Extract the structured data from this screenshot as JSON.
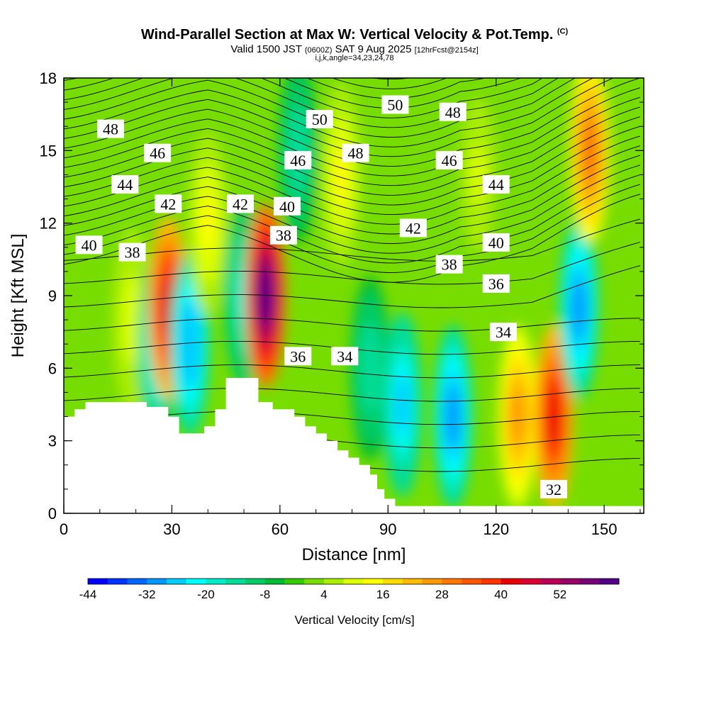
{
  "title": {
    "main": "Wind-Parallel Section at Max W: Vertical Velocity & Pot.Temp.",
    "copyright": "(C)",
    "valid_prefix": "Valid 1500 JST",
    "valid_utc": "(0600Z)",
    "valid_date": "SAT 9 Aug 2025",
    "forecast": "[12hrFcst@2154z]",
    "indices": "i,j,k,angle=34,23,24,78"
  },
  "chart_data": {
    "type": "heatmap",
    "xlabel": "Distance [nm]",
    "ylabel": "Height [Kft MSL]",
    "xlim": [
      0,
      161
    ],
    "ylim": [
      0,
      18
    ],
    "x_ticks": [
      0,
      30,
      60,
      90,
      120,
      150
    ],
    "y_ticks": [
      0,
      3,
      6,
      9,
      12,
      15,
      18
    ],
    "colorbar": {
      "title": "Vertical Velocity [cm/s]",
      "tick_labels": [
        "-44",
        "-32",
        "-20",
        "-8",
        "4",
        "16",
        "28",
        "40",
        "52"
      ],
      "tick_values": [
        -44,
        -32,
        -20,
        -8,
        4,
        16,
        28,
        40,
        52
      ],
      "range": [
        -44,
        64
      ],
      "levels": [
        -44,
        -40,
        -36,
        -32,
        -28,
        -24,
        -20,
        -16,
        -12,
        -8,
        -4,
        0,
        4,
        8,
        12,
        16,
        20,
        24,
        28,
        32,
        36,
        40,
        44,
        48,
        52,
        56,
        60,
        64
      ],
      "colors": [
        "#0000ff",
        "#0033ff",
        "#0066ff",
        "#0099ff",
        "#00ccff",
        "#00ffff",
        "#00eecc",
        "#00dd99",
        "#00cc66",
        "#00bb33",
        "#33cc00",
        "#77dd00",
        "#aaee00",
        "#ddff00",
        "#ffff00",
        "#ffdd00",
        "#ffbb00",
        "#ff9900",
        "#ff7700",
        "#ff5500",
        "#ff3300",
        "#ee0000",
        "#dd0033",
        "#bb0055",
        "#990066",
        "#770077",
        "#550088"
      ]
    },
    "vertical_velocity_features": [
      {
        "x": 19,
        "z": 8,
        "value": 10,
        "sign": "up"
      },
      {
        "x": 26,
        "z": 7,
        "value": -22,
        "sign": "down"
      },
      {
        "x": 29,
        "z": 8.5,
        "value": 44,
        "sign": "up"
      },
      {
        "x": 35,
        "z": 7,
        "value": -28,
        "sign": "down"
      },
      {
        "x": 40,
        "z": 12,
        "value": 12,
        "sign": "up"
      },
      {
        "x": 50,
        "z": 9,
        "value": -18,
        "sign": "down"
      },
      {
        "x": 56,
        "z": 9,
        "value": 60,
        "sign": "up"
      },
      {
        "x": 65,
        "z": 15,
        "value": -16,
        "sign": "down"
      },
      {
        "x": 77,
        "z": 14,
        "value": 12,
        "sign": "up"
      },
      {
        "x": 85,
        "z": 6,
        "value": -14,
        "sign": "down"
      },
      {
        "x": 94,
        "z": 4.5,
        "value": -26,
        "sign": "down"
      },
      {
        "x": 108,
        "z": 4,
        "value": -30,
        "sign": "down"
      },
      {
        "x": 115,
        "z": 14,
        "value": 8,
        "sign": "up"
      },
      {
        "x": 126,
        "z": 4,
        "value": 24,
        "sign": "up"
      },
      {
        "x": 136,
        "z": 4,
        "value": 42,
        "sign": "up"
      },
      {
        "x": 143,
        "z": 8.5,
        "value": -32,
        "sign": "down"
      },
      {
        "x": 146,
        "z": 15,
        "value": 28,
        "sign": "up"
      }
    ],
    "potential_temperature_contours": [
      {
        "label": "32",
        "x": 136,
        "z": 1
      },
      {
        "label": "34",
        "x": 78,
        "z": 6.5
      },
      {
        "label": "34",
        "x": 122,
        "z": 7.5
      },
      {
        "label": "36",
        "x": 65,
        "z": 6.5
      },
      {
        "label": "36",
        "x": 120,
        "z": 9.5
      },
      {
        "label": "38",
        "x": 19,
        "z": 10.8
      },
      {
        "label": "38",
        "x": 61,
        "z": 11.5
      },
      {
        "label": "38",
        "x": 107,
        "z": 10.3
      },
      {
        "label": "40",
        "x": 7,
        "z": 11.1
      },
      {
        "label": "40",
        "x": 62,
        "z": 12.7
      },
      {
        "label": "40",
        "x": 120,
        "z": 11.2
      },
      {
        "label": "42",
        "x": 29,
        "z": 12.8
      },
      {
        "label": "42",
        "x": 49,
        "z": 12.8
      },
      {
        "label": "42",
        "x": 97,
        "z": 11.8
      },
      {
        "label": "44",
        "x": 17,
        "z": 13.6
      },
      {
        "label": "44",
        "x": 120,
        "z": 13.6
      },
      {
        "label": "46",
        "x": 26,
        "z": 14.9
      },
      {
        "label": "46",
        "x": 65,
        "z": 14.6
      },
      {
        "label": "46",
        "x": 107,
        "z": 14.6
      },
      {
        "label": "48",
        "x": 13,
        "z": 15.9
      },
      {
        "label": "48",
        "x": 81,
        "z": 14.9
      },
      {
        "label": "48",
        "x": 108,
        "z": 16.6
      },
      {
        "label": "50",
        "x": 71,
        "z": 16.3
      },
      {
        "label": "50",
        "x": 92,
        "z": 16.9
      }
    ],
    "terrain": [
      [
        0,
        4
      ],
      [
        3,
        4
      ],
      [
        3,
        4.3
      ],
      [
        6,
        4.3
      ],
      [
        6,
        4.6
      ],
      [
        23,
        4.6
      ],
      [
        23,
        4.4
      ],
      [
        29,
        4.4
      ],
      [
        29,
        4
      ],
      [
        32,
        4
      ],
      [
        32,
        3.3
      ],
      [
        39,
        3.3
      ],
      [
        39,
        3.6
      ],
      [
        42,
        3.6
      ],
      [
        42,
        4.3
      ],
      [
        45,
        4.3
      ],
      [
        45,
        5.6
      ],
      [
        54,
        5.6
      ],
      [
        54,
        4.6
      ],
      [
        58,
        4.6
      ],
      [
        58,
        4.3
      ],
      [
        64,
        4.3
      ],
      [
        64,
        4
      ],
      [
        67,
        4
      ],
      [
        67,
        3.6
      ],
      [
        70,
        3.6
      ],
      [
        70,
        3.3
      ],
      [
        73,
        3.3
      ],
      [
        73,
        3
      ],
      [
        76,
        3
      ],
      [
        76,
        2.6
      ],
      [
        79,
        2.6
      ],
      [
        79,
        2.3
      ],
      [
        82,
        2.3
      ],
      [
        82,
        2
      ],
      [
        85,
        2
      ],
      [
        85,
        1.6
      ],
      [
        87,
        1.6
      ],
      [
        87,
        1
      ],
      [
        89,
        1
      ],
      [
        89,
        0.6
      ],
      [
        92,
        0.6
      ],
      [
        92,
        0.3
      ],
      [
        161,
        0.3
      ]
    ]
  }
}
